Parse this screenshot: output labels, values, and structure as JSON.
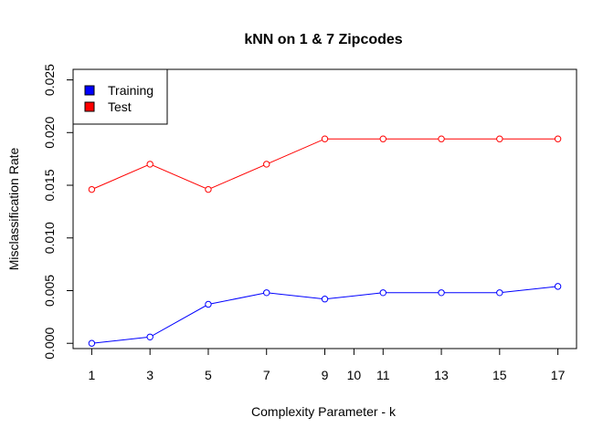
{
  "chart_data": {
    "type": "line",
    "title": "kNN on 1 & 7 Zipcodes",
    "xlabel": "Complexity Parameter - k",
    "ylabel": "Misclassification Rate",
    "xlim": [
      0.36,
      17.64
    ],
    "ylim": [
      -0.0005,
      0.026
    ],
    "x_ticks": [
      1,
      3,
      5,
      7,
      9,
      10,
      11,
      13,
      15,
      17
    ],
    "y_ticks": [
      "0.000",
      "0.005",
      "0.010",
      "0.015",
      "0.020",
      "0.025"
    ],
    "y_tick_values": [
      0.0,
      0.005,
      0.01,
      0.015,
      0.02,
      0.025
    ],
    "grid": false,
    "legend_position": "top-left",
    "series": [
      {
        "name": "Training",
        "color": "#0000ff",
        "x": [
          1,
          3,
          5,
          7,
          9,
          11,
          13,
          15,
          17
        ],
        "values": [
          0.0,
          0.0006,
          0.0037,
          0.0048,
          0.0042,
          0.0048,
          0.0048,
          0.0048,
          0.0054
        ]
      },
      {
        "name": "Test",
        "color": "#ff0000",
        "x": [
          1,
          3,
          5,
          7,
          9,
          11,
          13,
          15,
          17
        ],
        "values": [
          0.0146,
          0.017,
          0.0146,
          0.017,
          0.0194,
          0.0194,
          0.0194,
          0.0194,
          0.0194
        ]
      }
    ]
  }
}
